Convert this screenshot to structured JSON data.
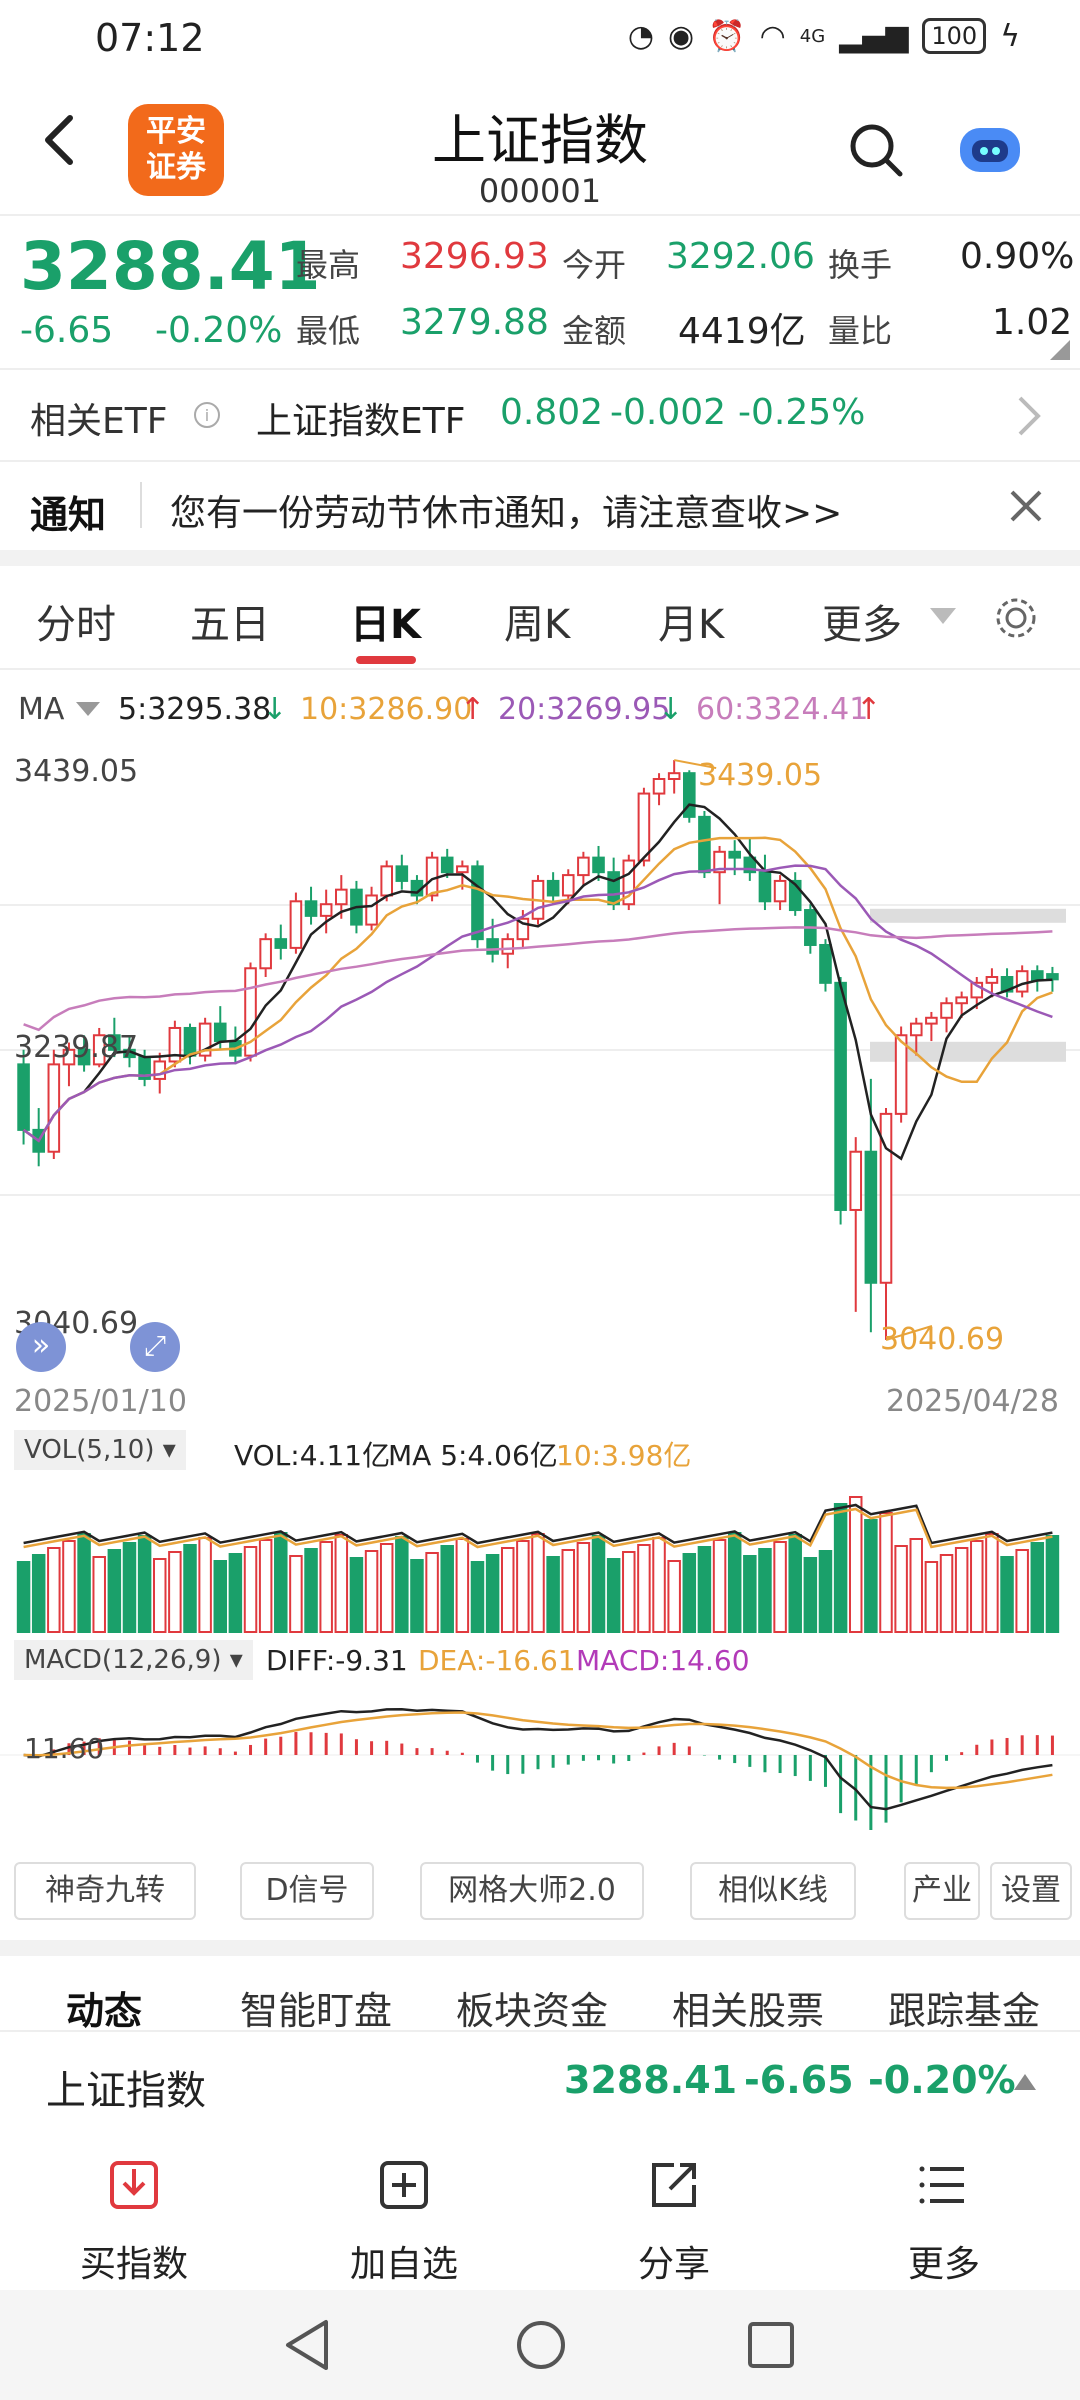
{
  "status_bar": {
    "time": "07:12",
    "battery": "100",
    "signal": "4G"
  },
  "header": {
    "title": "上证指数",
    "code": "000001",
    "logo_text_1": "平安",
    "logo_text_2": "证券"
  },
  "quote": {
    "price": "3288.41",
    "change": "-6.65",
    "change_pct": "-0.20%",
    "high_label": "最高",
    "high": "3296.93",
    "open_label": "今开",
    "open": "3292.06",
    "turnover_label": "换手",
    "turnover": "0.90%",
    "low_label": "最低",
    "low": "3279.88",
    "amount_label": "金额",
    "amount": "4419亿",
    "vol_ratio_label": "量比",
    "vol_ratio": "1.02"
  },
  "etf": {
    "label": "相关ETF",
    "name": "上证指数ETF",
    "price": "0.802",
    "change": "-0.002",
    "change_pct": "-0.25%"
  },
  "notice": {
    "label": "通知",
    "text": "您有一份劳动节休市通知，请注意查收>>"
  },
  "tabs": [
    "分时",
    "五日",
    "日K",
    "周K",
    "月K",
    "更多"
  ],
  "ma": {
    "label": "MA",
    "ma5": "5:3295.38",
    "ma10": "10:3286.90",
    "ma20": "20:3269.95",
    "ma60": "60:3324.41"
  },
  "chart_labels": {
    "top": "3439.05",
    "mid": "3239.87",
    "bottom": "3040.69",
    "start_date": "2025/01/10",
    "end_date": "2025/04/28",
    "high_mark": "3439.05",
    "low_mark": "3040.69"
  },
  "vol": {
    "selector": "VOL(5,10)",
    "vol": "VOL:4.11亿",
    "ma5": "MA 5:4.06亿",
    "ma10": "10:3.98亿"
  },
  "macd": {
    "selector": "MACD(12,26,9)",
    "diff": "DIFF:-9.31",
    "dea": "DEA:-16.61",
    "macd": "MACD:14.60",
    "axis": "11.60"
  },
  "func_buttons": [
    "神奇九转",
    "D信号",
    "网格大师2.0",
    "相似K线",
    "产业",
    "设置"
  ],
  "sub_tabs": [
    "动态",
    "智能盯盘",
    "板块资金",
    "相关股票",
    "跟踪基金"
  ],
  "bottom_quote": {
    "name": "上证指数",
    "price": "3288.41",
    "change": "-6.65",
    "change_pct": "-0.20%"
  },
  "actions": [
    "买指数",
    "加自选",
    "分享",
    "更多"
  ],
  "colors": {
    "up": "#e0393e",
    "down": "#1aa06a",
    "ma5": "#222222",
    "ma10": "#e8a33a",
    "ma20": "#9b59b6",
    "ma60": "#c77dbb"
  },
  "chart_data": {
    "type": "candlestick",
    "title": "",
    "xlabel": "",
    "ylabel": "",
    "date_range": [
      "2025/01/10",
      "2025/04/28"
    ],
    "ylim": [
      3040.69,
      3439.05
    ],
    "ohlc": [
      [
        3230,
        3240,
        3175,
        3185
      ],
      [
        3185,
        3200,
        3160,
        3170
      ],
      [
        3170,
        3240,
        3165,
        3230
      ],
      [
        3230,
        3245,
        3215,
        3240
      ],
      [
        3240,
        3250,
        3225,
        3230
      ],
      [
        3230,
        3255,
        3228,
        3250
      ],
      [
        3250,
        3262,
        3235,
        3240
      ],
      [
        3240,
        3250,
        3228,
        3235
      ],
      [
        3235,
        3240,
        3215,
        3220
      ],
      [
        3220,
        3238,
        3210,
        3232
      ],
      [
        3232,
        3260,
        3228,
        3255
      ],
      [
        3255,
        3258,
        3230,
        3236
      ],
      [
        3236,
        3262,
        3232,
        3258
      ],
      [
        3258,
        3270,
        3240,
        3246
      ],
      [
        3246,
        3256,
        3230,
        3236
      ],
      [
        3236,
        3300,
        3232,
        3296
      ],
      [
        3296,
        3320,
        3290,
        3316
      ],
      [
        3316,
        3326,
        3302,
        3310
      ],
      [
        3310,
        3348,
        3306,
        3342
      ],
      [
        3342,
        3352,
        3326,
        3332
      ],
      [
        3332,
        3350,
        3320,
        3340
      ],
      [
        3340,
        3360,
        3330,
        3350
      ],
      [
        3350,
        3356,
        3320,
        3326
      ],
      [
        3326,
        3352,
        3322,
        3346
      ],
      [
        3346,
        3370,
        3342,
        3366
      ],
      [
        3366,
        3374,
        3350,
        3356
      ],
      [
        3356,
        3360,
        3340,
        3346
      ],
      [
        3346,
        3376,
        3342,
        3372
      ],
      [
        3372,
        3378,
        3358,
        3362
      ],
      [
        3362,
        3370,
        3350,
        3366
      ],
      [
        3366,
        3370,
        3310,
        3316
      ],
      [
        3316,
        3330,
        3300,
        3306
      ],
      [
        3306,
        3320,
        3296,
        3316
      ],
      [
        3316,
        3336,
        3310,
        3330
      ],
      [
        3330,
        3360,
        3326,
        3356
      ],
      [
        3356,
        3362,
        3340,
        3346
      ],
      [
        3346,
        3364,
        3340,
        3360
      ],
      [
        3360,
        3376,
        3352,
        3372
      ],
      [
        3372,
        3380,
        3356,
        3362
      ],
      [
        3362,
        3372,
        3336,
        3340
      ],
      [
        3340,
        3374,
        3336,
        3370
      ],
      [
        3370,
        3420,
        3366,
        3416
      ],
      [
        3416,
        3430,
        3408,
        3426
      ],
      [
        3426,
        3439,
        3416,
        3430
      ],
      [
        3430,
        3432,
        3396,
        3400
      ],
      [
        3400,
        3404,
        3358,
        3362
      ],
      [
        3362,
        3380,
        3340,
        3376
      ],
      [
        3376,
        3384,
        3360,
        3372
      ],
      [
        3372,
        3386,
        3356,
        3362
      ],
      [
        3362,
        3374,
        3336,
        3342
      ],
      [
        3342,
        3360,
        3336,
        3356
      ],
      [
        3356,
        3362,
        3332,
        3336
      ],
      [
        3336,
        3340,
        3306,
        3312
      ],
      [
        3312,
        3316,
        3280,
        3286
      ],
      [
        3286,
        3290,
        3120,
        3130
      ],
      [
        3130,
        3180,
        3060,
        3170
      ],
      [
        3170,
        3220,
        3046,
        3080
      ],
      [
        3080,
        3200,
        3040.69,
        3196
      ],
      [
        3196,
        3256,
        3190,
        3250
      ],
      [
        3250,
        3262,
        3236,
        3258
      ],
      [
        3258,
        3266,
        3246,
        3262
      ],
      [
        3262,
        3276,
        3252,
        3272
      ],
      [
        3272,
        3280,
        3262,
        3276
      ],
      [
        3276,
        3290,
        3268,
        3286
      ],
      [
        3286,
        3296,
        3276,
        3290
      ],
      [
        3290,
        3296,
        3276,
        3280
      ],
      [
        3280,
        3298,
        3276,
        3294
      ],
      [
        3294,
        3298,
        3280,
        3288
      ],
      [
        3292,
        3296.93,
        3279.88,
        3288.41
      ]
    ],
    "ma_legend": {
      "MA5": 3295.38,
      "MA10": 3286.9,
      "MA20": 3269.95,
      "MA60": 3324.41
    },
    "macd": {
      "DIFF": -9.31,
      "DEA": -16.61,
      "MACD": 14.6
    },
    "volume": {
      "VOL": "4.11亿",
      "MA5": "4.06亿",
      "MA10": "3.98亿"
    }
  }
}
